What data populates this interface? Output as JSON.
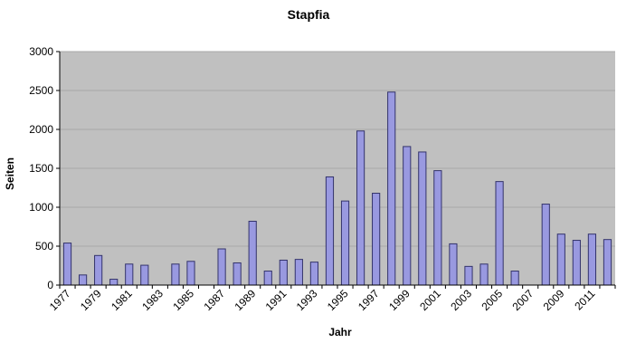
{
  "chart_data": {
    "type": "bar",
    "title": "Stapfia",
    "xlabel": "Jahr",
    "ylabel": "Seiten",
    "ylim": [
      0,
      3000
    ],
    "yticks": [
      0,
      500,
      1000,
      1500,
      2000,
      2500,
      3000
    ],
    "grid": true,
    "legend": "none",
    "categories": [
      1977,
      1978,
      1979,
      1980,
      1981,
      1982,
      1983,
      1984,
      1985,
      1986,
      1987,
      1988,
      1989,
      1990,
      1991,
      1992,
      1993,
      1994,
      1995,
      1996,
      1997,
      1998,
      1999,
      2000,
      2001,
      2002,
      2003,
      2004,
      2005,
      2006,
      2007,
      2008,
      2009,
      2010,
      2011,
      2012
    ],
    "xtick_labels": [
      1977,
      1979,
      1981,
      1983,
      1985,
      1987,
      1989,
      1991,
      1993,
      1995,
      1997,
      1999,
      2001,
      2003,
      2005,
      2007,
      2009,
      2011
    ],
    "values": [
      540,
      130,
      380,
      75,
      270,
      255,
      0,
      270,
      305,
      0,
      465,
      285,
      820,
      180,
      320,
      330,
      295,
      1390,
      1080,
      1980,
      1180,
      2480,
      1780,
      1710,
      1470,
      530,
      240,
      270,
      1330,
      180,
      0,
      1040,
      655,
      575,
      655,
      585
    ],
    "colors": {
      "bar_fill": "#9999e0",
      "bar_stroke": "#33336b",
      "plot_bg": "#c0c0c0",
      "grid": "#a8a8a8"
    }
  }
}
